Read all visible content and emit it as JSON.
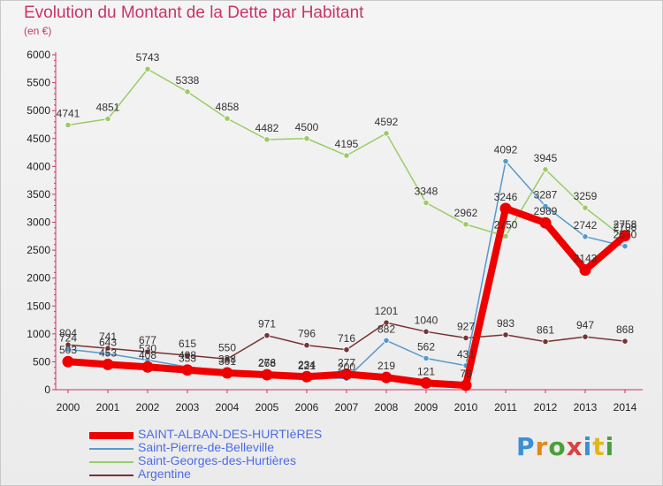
{
  "header": {
    "title": "Evolution du Montant de la Dette par Habitant",
    "subtitle": "(en €)"
  },
  "logo": {
    "text": "Proxiti"
  },
  "chart_data": {
    "type": "line",
    "title": "Evolution du Montant de la Dette par Habitant",
    "ylabel": "(en €)",
    "xlabel": "",
    "ylim": [
      0,
      6000
    ],
    "yticks": [
      0,
      500,
      1000,
      1500,
      2000,
      2500,
      3000,
      3500,
      4000,
      4500,
      5000,
      5500,
      6000
    ],
    "grid": false,
    "legend_position": "bottom-left",
    "categories": [
      "2000",
      "2001",
      "2002",
      "2003",
      "2004",
      "2005",
      "2006",
      "2007",
      "2008",
      "2009",
      "2010",
      "2011",
      "2012",
      "2013",
      "2014"
    ],
    "series": [
      {
        "name": "SAINT-ALBAN-DES-HURTIèRES",
        "color": "#ee0000",
        "width": 8,
        "values": [
          503,
          453,
          408,
          353,
          301,
          268,
          234,
          277,
          219,
          121,
          78,
          3246,
          2989,
          2143,
          2758
        ]
      },
      {
        "name": "Saint-Pierre-de-Belleville",
        "color": "#5599cc",
        "width": 1.5,
        "values": [
          724,
          643,
          530,
          408,
          338,
          276,
          221,
          200,
          882,
          562,
          431,
          4092,
          3287,
          2742,
          2570
        ]
      },
      {
        "name": "Saint-Georges-des-Hurtières",
        "color": "#99cc66",
        "width": 1.5,
        "values": [
          4741,
          4851,
          5743,
          5338,
          4858,
          4482,
          4500,
          4195,
          4592,
          3348,
          2962,
          2750,
          3945,
          3259,
          2708
        ]
      },
      {
        "name": "Argentine",
        "color": "#773333",
        "width": 1.5,
        "values": [
          804,
          741,
          677,
          615,
          550,
          971,
          796,
          716,
          1201,
          1040,
          927,
          983,
          861,
          947,
          868
        ]
      }
    ]
  },
  "colors": {
    "title": "#cc3366",
    "axis": "#cc3366",
    "label": "#333333",
    "legend_text": "#4d6be6"
  }
}
